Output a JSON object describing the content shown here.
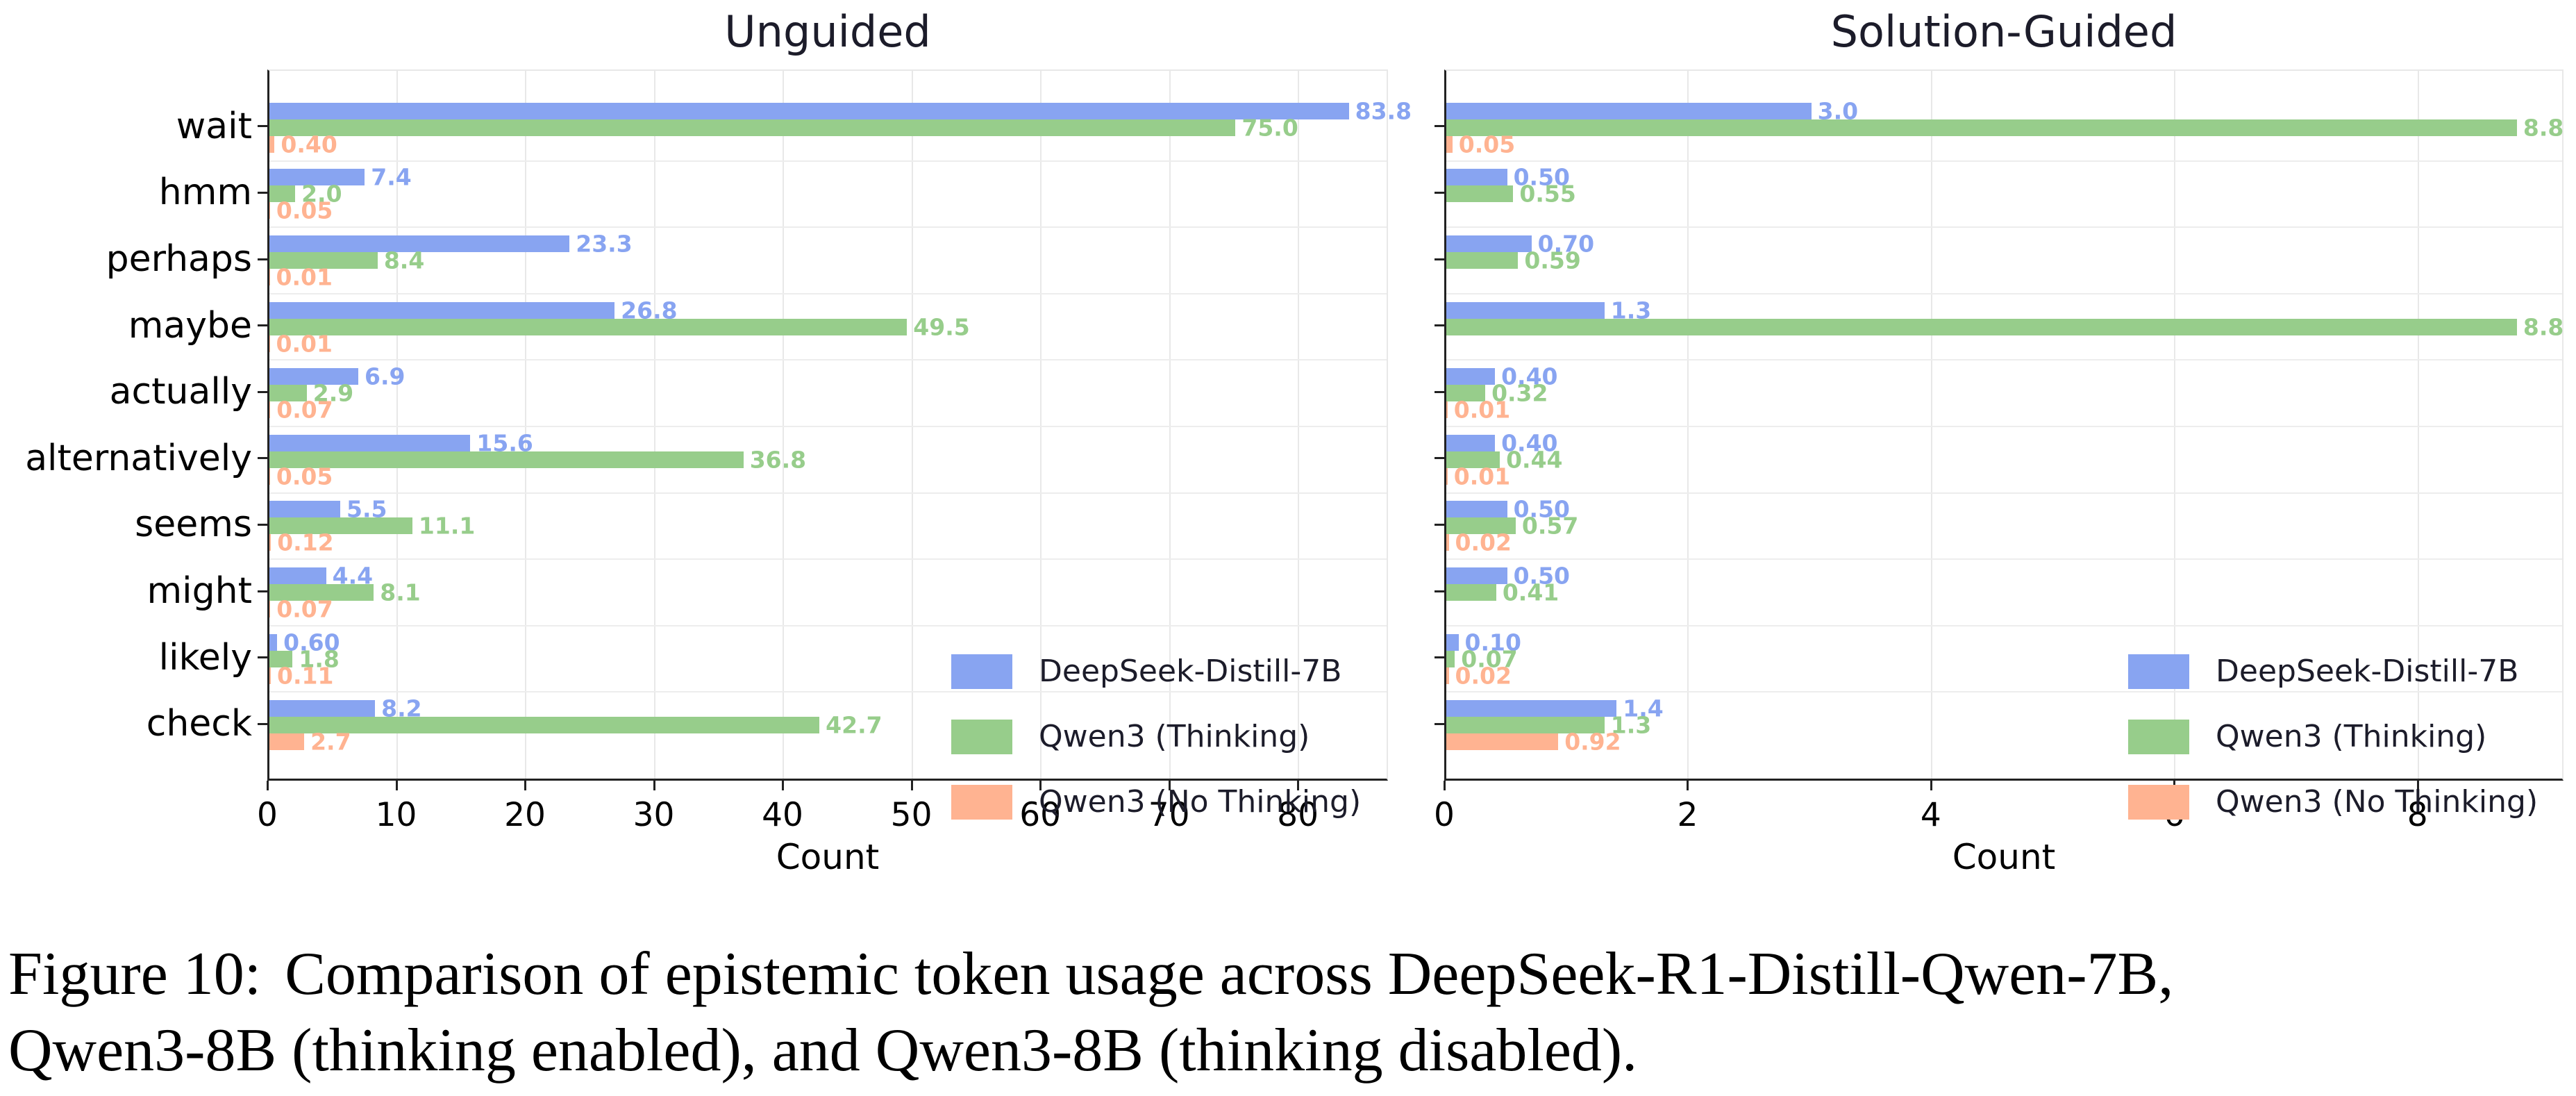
{
  "style": {
    "series_blue": "#88A4F1",
    "series_green": "#97CD8B",
    "series_orange": "#FFB391",
    "grid_color": "#e8e8e8",
    "spine_color": "#222222",
    "text_color": "#1c1c2a"
  },
  "chart_data": [
    {
      "type": "bar",
      "orientation": "horizontal",
      "title": "Unguided",
      "xlabel": "Count",
      "xlim": [
        0,
        87
      ],
      "xticks": [
        0,
        10,
        20,
        30,
        40,
        50,
        60,
        70,
        80
      ],
      "grid": true,
      "show_ylabels": true,
      "legend_position": "lower right",
      "categories": [
        "wait",
        "hmm",
        "perhaps",
        "maybe",
        "actually",
        "alternatively",
        "seems",
        "might",
        "likely",
        "check"
      ],
      "series": [
        {
          "name": "DeepSeek-Distill-7B",
          "color": "#88A4F1",
          "values": [
            83.8,
            7.4,
            23.3,
            26.8,
            6.9,
            15.6,
            5.5,
            4.4,
            0.6,
            8.2
          ],
          "labels": [
            "83.8",
            "7.4",
            "23.3",
            "26.8",
            "6.9",
            "15.6",
            "5.5",
            "4.4",
            "0.60",
            "8.2"
          ]
        },
        {
          "name": "Qwen3 (Thinking)",
          "color": "#97CD8B",
          "values": [
            75.0,
            2.0,
            8.4,
            49.5,
            2.9,
            36.8,
            11.1,
            8.1,
            1.8,
            42.7
          ],
          "labels": [
            "75.0",
            "2.0",
            "8.4",
            "49.5",
            "2.9",
            "36.8",
            "11.1",
            "8.1",
            "1.8",
            "42.7"
          ]
        },
        {
          "name": "Qwen3 (No Thinking)",
          "color": "#FFB391",
          "values": [
            0.4,
            0.05,
            0.01,
            0.01,
            0.07,
            0.05,
            0.12,
            0.07,
            0.11,
            2.7
          ],
          "labels": [
            "0.40",
            "0.05",
            "0.01",
            "0.01",
            "0.07",
            "0.05",
            "0.12",
            "0.07",
            "0.11",
            "2.7"
          ]
        }
      ]
    },
    {
      "type": "bar",
      "orientation": "horizontal",
      "title": "Solution-Guided",
      "xlabel": "Count",
      "xlim": [
        0,
        9.2
      ],
      "xticks": [
        0,
        2,
        4,
        6,
        8
      ],
      "grid": true,
      "show_ylabels": false,
      "legend_position": "lower right",
      "categories": [
        "wait",
        "hmm",
        "perhaps",
        "maybe",
        "actually",
        "alternatively",
        "seems",
        "might",
        "likely",
        "check"
      ],
      "series": [
        {
          "name": "DeepSeek-Distill-7B",
          "color": "#88A4F1",
          "values": [
            3.0,
            0.5,
            0.7,
            1.3,
            0.4,
            0.4,
            0.5,
            0.5,
            0.1,
            1.4
          ],
          "labels": [
            "3.0",
            "0.50",
            "0.70",
            "1.3",
            "0.40",
            "0.40",
            "0.50",
            "0.50",
            "0.10",
            "1.4"
          ]
        },
        {
          "name": "Qwen3 (Thinking)",
          "color": "#97CD8B",
          "values": [
            8.8,
            0.55,
            0.59,
            8.8,
            0.32,
            0.44,
            0.57,
            0.41,
            0.07,
            1.3
          ],
          "labels": [
            "8.8",
            "0.55",
            "0.59",
            "8.8",
            "0.32",
            "0.44",
            "0.57",
            "0.41",
            "0.07",
            "1.3"
          ]
        },
        {
          "name": "Qwen3 (No Thinking)",
          "color": "#FFB391",
          "values": [
            0.05,
            null,
            null,
            null,
            0.01,
            0.01,
            0.02,
            null,
            0.02,
            0.92
          ],
          "labels": [
            "0.05",
            null,
            null,
            null,
            "0.01",
            "0.01",
            "0.02",
            null,
            "0.02",
            "0.92"
          ]
        }
      ]
    }
  ],
  "caption": {
    "label": "Figure 10:",
    "line1": "Comparison of epistemic token usage across DeepSeek-R1-Distill-Qwen-7B,",
    "line2": "Qwen3-8B (thinking enabled), and Qwen3-8B (thinking disabled)."
  }
}
